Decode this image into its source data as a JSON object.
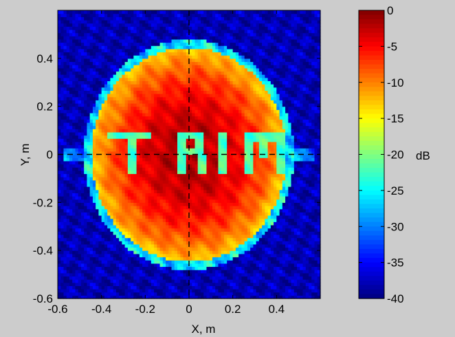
{
  "chart_data": {
    "type": "heatmap",
    "title": "",
    "xlabel": "X, m",
    "ylabel": "Y, m",
    "xlim": [
      -0.6,
      0.6
    ],
    "ylim": [
      -0.6,
      0.6
    ],
    "x_ticks": [
      -0.6,
      -0.4,
      -0.2,
      0,
      0.2,
      0.4
    ],
    "y_ticks": [
      -0.6,
      -0.4,
      -0.2,
      0,
      0.2,
      0.4
    ],
    "x_tick_labels": [
      "-0.6",
      "-0.4",
      "-0.2",
      "0",
      "0.2",
      "0.4"
    ],
    "y_tick_labels": [
      "-0.6",
      "-0.4",
      "-0.2",
      "0",
      "0.2",
      "0.4"
    ],
    "colormap": "jet",
    "colorbar": {
      "range": [
        -40,
        0
      ],
      "ticks": [
        0,
        -5,
        -10,
        -15,
        -20,
        -25,
        -30,
        -35,
        -40
      ],
      "tick_labels": [
        "0",
        "-5",
        "-10",
        "-15",
        "-20",
        "-25",
        "-30",
        "-35",
        "-40"
      ],
      "unit_label": "dB"
    },
    "crosshair": {
      "x": 0,
      "y": 0,
      "style": "dashed"
    },
    "features": {
      "disk": {
        "center": [
          0,
          0
        ],
        "radius": 0.48,
        "edge_level_db": -15,
        "center_level_db": -2,
        "background_level_db": -38
      },
      "text_mask": {
        "text": "TRIM",
        "level_db": -22,
        "y_center": 0.02
      }
    }
  }
}
